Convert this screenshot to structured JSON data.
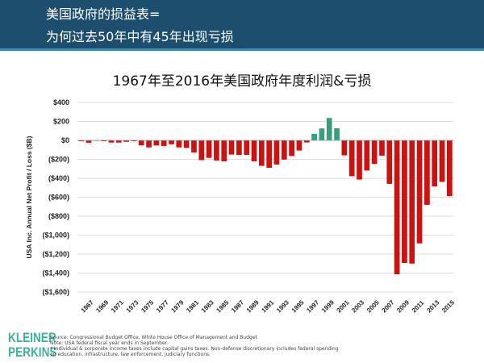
{
  "header": {
    "line1": "美国政府的损益表=",
    "line2": "为何过去50年中有45年出现亏损"
  },
  "chart_data": {
    "type": "bar",
    "title": "1967年至2016年美国政府年度利润&亏损",
    "ylabel": "USA Inc. Annual Net Profit / Loss ($B)",
    "xlabel": "",
    "ylim": [
      -1600,
      400
    ],
    "yticks": [
      400,
      200,
      0,
      -200,
      -400,
      -600,
      -800,
      -1000,
      -1200,
      -1400,
      -1600
    ],
    "ytick_labels": [
      "$400",
      "$200",
      "$0",
      "($200)",
      "($400)",
      "($600)",
      "($800)",
      "($1,000)",
      "($1,200)",
      "($1,400)",
      "($1,600)"
    ],
    "grid": true,
    "colors": {
      "profit": "#3a9e7e",
      "loss": "#cc1111"
    },
    "categories": [
      1967,
      1968,
      1969,
      1970,
      1971,
      1972,
      1973,
      1974,
      1975,
      1976,
      1977,
      1978,
      1979,
      1980,
      1981,
      1982,
      1983,
      1984,
      1985,
      1986,
      1987,
      1988,
      1989,
      1990,
      1991,
      1992,
      1993,
      1994,
      1995,
      1996,
      1997,
      1998,
      1999,
      2000,
      2001,
      2002,
      2003,
      2004,
      2005,
      2006,
      2007,
      2008,
      2009,
      2010,
      2011,
      2012,
      2013,
      2014,
      2015,
      2016
    ],
    "xtick_labels": [
      "1967",
      "1969",
      "1971",
      "1973",
      "1975",
      "1977",
      "1979",
      "1981",
      "1983",
      "1985",
      "1987",
      "1989",
      "1991",
      "1993",
      "1995",
      "1997",
      "1999",
      "2001",
      "2003",
      "2005",
      "2007",
      "2009",
      "2011",
      "2013",
      "2015"
    ],
    "values": [
      -9,
      -25,
      3,
      -3,
      -23,
      -23,
      -15,
      -6,
      -53,
      -74,
      -54,
      -59,
      -41,
      -74,
      -79,
      -128,
      -208,
      -185,
      -212,
      -221,
      -150,
      -155,
      -153,
      -221,
      -269,
      -290,
      -255,
      -203,
      -164,
      -107,
      -22,
      69,
      126,
      236,
      128,
      -158,
      -378,
      -413,
      -318,
      -248,
      -161,
      -459,
      -1413,
      -1294,
      -1300,
      -1087,
      -680,
      -485,
      -438,
      -587
    ]
  },
  "footer": {
    "logo": "KLEINER PERKINS",
    "notes": [
      "Source: Congressional Budget Office, White House Office of Management and Budget",
      "Note: USA federal fiscal year ends in September.",
      "* Individual & corporate income taxes include capital gains taxes. Non-defense discretionary includes federal spending on education, infrastructure, law enforcement, judiciary functions."
    ]
  }
}
